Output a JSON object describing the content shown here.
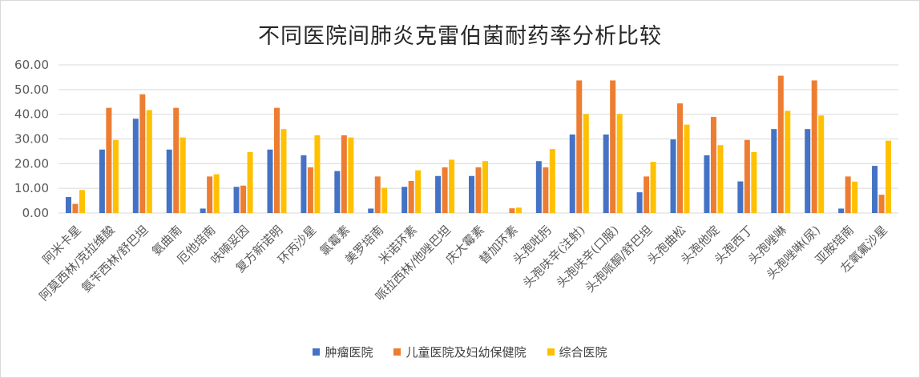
{
  "chart_data": {
    "type": "bar",
    "title": "不同医院间肺炎克雷伯菌耐药率分析比较",
    "xlabel": "",
    "ylabel": "",
    "ylim": [
      0,
      60
    ],
    "yticks": [
      "0.00",
      "10.00",
      "20.00",
      "30.00",
      "40.00",
      "50.00",
      "60.00"
    ],
    "grid": true,
    "legend_position": "bottom",
    "categories": [
      "阿米卡星",
      "阿莫西林/克拉维酸",
      "氨苄西林/舒巴坦",
      "氨曲南",
      "厄他培南",
      "呋喃妥因",
      "复方新诺明",
      "环丙沙星",
      "氯霉素",
      "美罗培南",
      "米诺环素",
      "哌拉西林/他唑巴坦",
      "庆大霉素",
      "替加环素",
      "头孢吡肟",
      "头孢呋辛(注射)",
      "头孢呋辛(口服)",
      "头孢哌酮/舒巴坦",
      "头孢曲松",
      "头孢他啶",
      "头孢西丁",
      "头孢唑啉",
      "头孢唑啉(尿)",
      "亚胺培南",
      "左氧氟沙星"
    ],
    "series": [
      {
        "name": "肿瘤医院",
        "color": "#4472c4",
        "values": [
          6.5,
          25.7,
          38.2,
          25.7,
          1.8,
          10.6,
          25.7,
          23.4,
          17.0,
          1.8,
          10.6,
          15.0,
          15.0,
          0.0,
          21.0,
          31.8,
          31.8,
          8.4,
          29.8,
          23.4,
          12.8,
          34.0,
          34.0,
          1.8,
          19.1
        ]
      },
      {
        "name": "儿童医院及妇幼保健院",
        "color": "#ed7d31",
        "values": [
          3.7,
          42.6,
          48.1,
          42.6,
          14.8,
          11.1,
          42.6,
          18.5,
          31.5,
          14.8,
          13.0,
          18.5,
          18.5,
          1.9,
          18.5,
          53.7,
          53.7,
          14.8,
          44.4,
          38.9,
          29.6,
          55.6,
          53.7,
          14.8,
          7.4
        ]
      },
      {
        "name": "综合医院",
        "color": "#ffc000",
        "values": [
          9.3,
          29.6,
          41.7,
          30.6,
          15.7,
          24.7,
          34.0,
          31.5,
          30.6,
          10.2,
          17.3,
          21.6,
          21.0,
          2.2,
          25.9,
          40.1,
          40.1,
          20.7,
          35.8,
          27.5,
          24.7,
          41.4,
          39.5,
          12.7,
          29.3
        ]
      }
    ]
  }
}
